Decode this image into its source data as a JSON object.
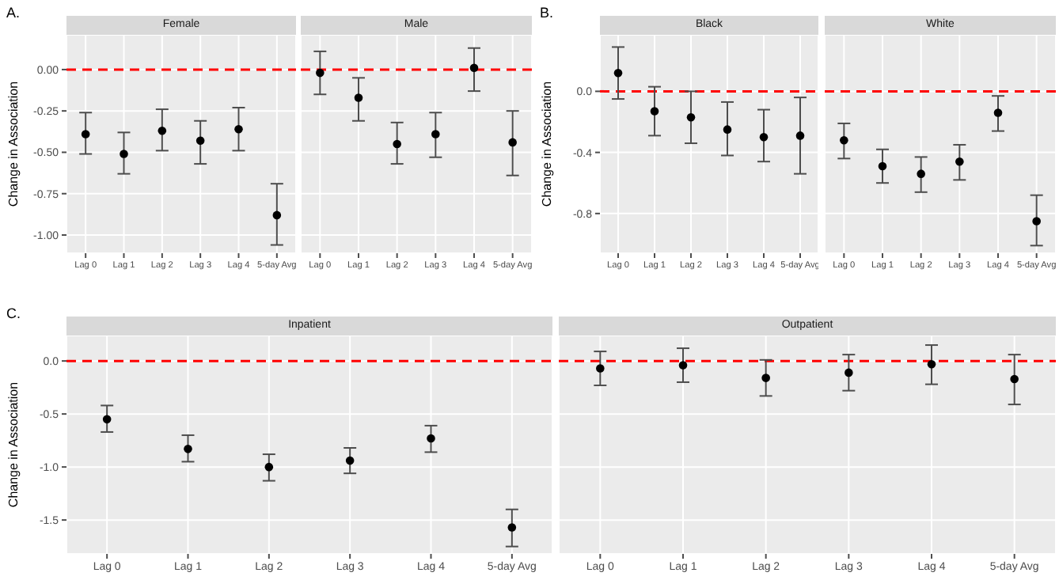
{
  "chart_data": [
    {
      "type": "scatter",
      "title": "Female",
      "annotations": [
        "A."
      ],
      "ylabel": "Change in Association",
      "categories": [
        "Lag 0",
        "Lag 1",
        "Lag 2",
        "Lag 3",
        "Lag 4",
        "5-day Avg"
      ],
      "values": [
        -0.39,
        -0.51,
        -0.37,
        -0.43,
        -0.36,
        -0.88
      ],
      "errors": [
        [
          -0.51,
          -0.26
        ],
        [
          -0.63,
          -0.38
        ],
        [
          -0.49,
          -0.24
        ],
        [
          -0.57,
          -0.31
        ],
        [
          -0.49,
          -0.23
        ],
        [
          -1.06,
          -0.69
        ]
      ],
      "color": "#000000",
      "marker": "circle",
      "grid": true,
      "ylim": [
        -1.11,
        0.21
      ],
      "yticks": [
        {
          "value": -1,
          "label": "-1.00"
        },
        {
          "value": -0.75,
          "label": "-0.75"
        },
        {
          "value": -0.5,
          "label": "-0.50"
        },
        {
          "value": -0.25,
          "label": "-0.25"
        },
        {
          "value": 0,
          "label": "0.00"
        }
      ],
      "ref_lines": [
        {
          "axis": "y",
          "value": 0,
          "color": "#ff0000",
          "line_style": "dashed"
        }
      ]
    },
    {
      "type": "scatter",
      "title": "Male",
      "categories": [
        "Lag 0",
        "Lag 1",
        "Lag 2",
        "Lag 3",
        "Lag 4",
        "5-day Avg"
      ],
      "values": [
        -0.02,
        -0.17,
        -0.45,
        -0.39,
        0.01,
        -0.44
      ],
      "errors": [
        [
          -0.15,
          0.11
        ],
        [
          -0.31,
          -0.05
        ],
        [
          -0.57,
          -0.32
        ],
        [
          -0.53,
          -0.26
        ],
        [
          -0.13,
          0.13
        ],
        [
          -0.64,
          -0.25
        ]
      ],
      "color": "#000000",
      "marker": "circle",
      "grid": true,
      "tick_labels": "x",
      "ylim": [
        -1.11,
        0.21
      ],
      "yticks": [
        -1,
        -0.75,
        -0.5,
        -0.25,
        0
      ],
      "ref_lines": [
        {
          "axis": "y",
          "value": 0,
          "color": "#ff0000",
          "line_style": "dashed"
        }
      ]
    },
    {
      "type": "scatter",
      "title": "Black",
      "annotations": [
        "B."
      ],
      "ylabel": "Change in Association",
      "categories": [
        "Lag 0",
        "Lag 1",
        "Lag 2",
        "Lag 3",
        "Lag 4",
        "5-day Avg"
      ],
      "values": [
        0.12,
        -0.13,
        -0.17,
        -0.25,
        -0.3,
        -0.29
      ],
      "errors": [
        [
          -0.05,
          0.29
        ],
        [
          -0.29,
          0.03
        ],
        [
          -0.34,
          0
        ],
        [
          -0.42,
          -0.07
        ],
        [
          -0.46,
          -0.12
        ],
        [
          -0.54,
          -0.04
        ]
      ],
      "color": "#000000",
      "marker": "circle",
      "grid": true,
      "ylim": [
        -1.06,
        0.37
      ],
      "yticks": [
        {
          "value": -0.8,
          "label": "-0.8"
        },
        {
          "value": -0.4,
          "label": "-0.4"
        },
        {
          "value": 0,
          "label": "0.0"
        }
      ],
      "ref_lines": [
        {
          "axis": "y",
          "value": 0,
          "color": "#ff0000",
          "line_style": "dashed"
        }
      ]
    },
    {
      "type": "scatter",
      "title": "White",
      "categories": [
        "Lag 0",
        "Lag 1",
        "Lag 2",
        "Lag 3",
        "Lag 4",
        "5-day Avg"
      ],
      "values": [
        -0.32,
        -0.49,
        -0.54,
        -0.46,
        -0.14,
        -0.85
      ],
      "errors": [
        [
          -0.44,
          -0.21
        ],
        [
          -0.6,
          -0.38
        ],
        [
          -0.66,
          -0.43
        ],
        [
          -0.58,
          -0.35
        ],
        [
          -0.26,
          -0.03
        ],
        [
          -1.01,
          -0.68
        ]
      ],
      "color": "#000000",
      "marker": "circle",
      "grid": true,
      "tick_labels": "x",
      "ylim": [
        -1.06,
        0.37
      ],
      "yticks": [
        -0.8,
        -0.4,
        0
      ],
      "ref_lines": [
        {
          "axis": "y",
          "value": 0,
          "color": "#ff0000",
          "line_style": "dashed"
        }
      ]
    },
    {
      "type": "scatter",
      "title": "Inpatient",
      "annotations": [
        "C."
      ],
      "ylabel": "Change in Association",
      "categories": [
        "Lag 0",
        "Lag 1",
        "Lag 2",
        "Lag 3",
        "Lag 4",
        "5-day Avg"
      ],
      "values": [
        -0.55,
        -0.83,
        -1.0,
        -0.94,
        -0.73,
        -1.57
      ],
      "errors": [
        [
          -0.67,
          -0.42
        ],
        [
          -0.95,
          -0.7
        ],
        [
          -1.13,
          -0.88
        ],
        [
          -1.06,
          -0.82
        ],
        [
          -0.86,
          -0.61
        ],
        [
          -1.75,
          -1.4
        ]
      ],
      "color": "#000000",
      "marker": "circle",
      "grid": true,
      "ylim": [
        -1.82,
        0.24
      ],
      "yticks": [
        {
          "value": -1.5,
          "label": "-1.5"
        },
        {
          "value": -1,
          "label": "-1.0"
        },
        {
          "value": -0.5,
          "label": "-0.5"
        },
        {
          "value": 0,
          "label": "0.0"
        }
      ],
      "ref_lines": [
        {
          "axis": "y",
          "value": 0,
          "color": "#ff0000",
          "line_style": "dashed"
        }
      ]
    },
    {
      "type": "scatter",
      "title": "Outpatient",
      "categories": [
        "Lag 0",
        "Lag 1",
        "Lag 2",
        "Lag 3",
        "Lag 4",
        "5-day Avg"
      ],
      "values": [
        -0.07,
        -0.04,
        -0.16,
        -0.11,
        -0.03,
        -0.17
      ],
      "errors": [
        [
          -0.23,
          0.09
        ],
        [
          -0.2,
          0.12
        ],
        [
          -0.33,
          0.01
        ],
        [
          -0.28,
          0.06
        ],
        [
          -0.22,
          0.15
        ],
        [
          -0.41,
          0.06
        ]
      ],
      "color": "#000000",
      "marker": "circle",
      "grid": true,
      "tick_labels": "x",
      "ylim": [
        -1.82,
        0.24
      ],
      "yticks": [
        -1.5,
        -1,
        -0.5,
        0
      ],
      "ref_lines": [
        {
          "axis": "y",
          "value": 0,
          "color": "#ff0000",
          "line_style": "dashed"
        }
      ]
    }
  ]
}
